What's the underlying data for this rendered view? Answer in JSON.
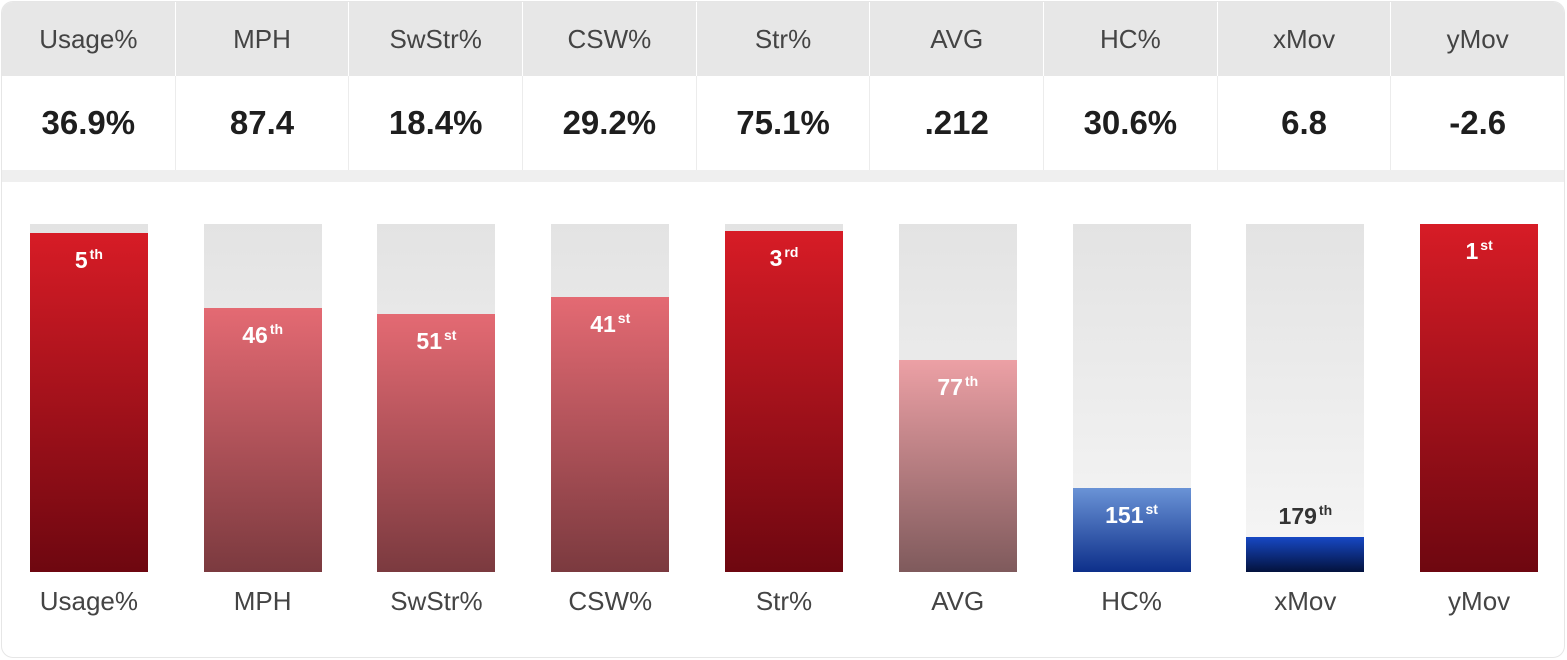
{
  "chart_data": {
    "type": "table",
    "metrics": [
      "Usage%",
      "MPH",
      "SwStr%",
      "CSW%",
      "Str%",
      "AVG",
      "HC%",
      "xMov",
      "yMov"
    ],
    "values": [
      "36.9%",
      "87.4",
      "18.4%",
      "29.2%",
      "75.1%",
      ".212",
      "30.6%",
      "6.8",
      "-2.6"
    ],
    "percentile_fill": [
      0.975,
      0.76,
      0.74,
      0.79,
      0.98,
      0.61,
      0.24,
      0.1,
      1.0
    ],
    "ranks": [
      {
        "num": "5",
        "suffix": "th"
      },
      {
        "num": "46",
        "suffix": "th"
      },
      {
        "num": "51",
        "suffix": "st"
      },
      {
        "num": "41",
        "suffix": "st"
      },
      {
        "num": "3",
        "suffix": "rd"
      },
      {
        "num": "77",
        "suffix": "th"
      },
      {
        "num": "151",
        "suffix": "st"
      },
      {
        "num": "179",
        "suffix": "th"
      },
      {
        "num": "1",
        "suffix": "st"
      }
    ],
    "colors": {
      "strong_red": [
        "#d71c26",
        "#6e0710"
      ],
      "mid_red": [
        "#e46a73",
        "#7b3a3f"
      ],
      "light_red": [
        "#eca0a5",
        "#7f5a5c"
      ],
      "mid_blue": [
        "#6a93d6",
        "#0d2f8a"
      ],
      "strong_blue": [
        "#1748c4",
        "#03123d"
      ]
    },
    "bar_color_keys": [
      "strong_red",
      "mid_red",
      "mid_red",
      "mid_red",
      "strong_red",
      "light_red",
      "mid_blue",
      "strong_blue",
      "strong_red"
    ]
  }
}
